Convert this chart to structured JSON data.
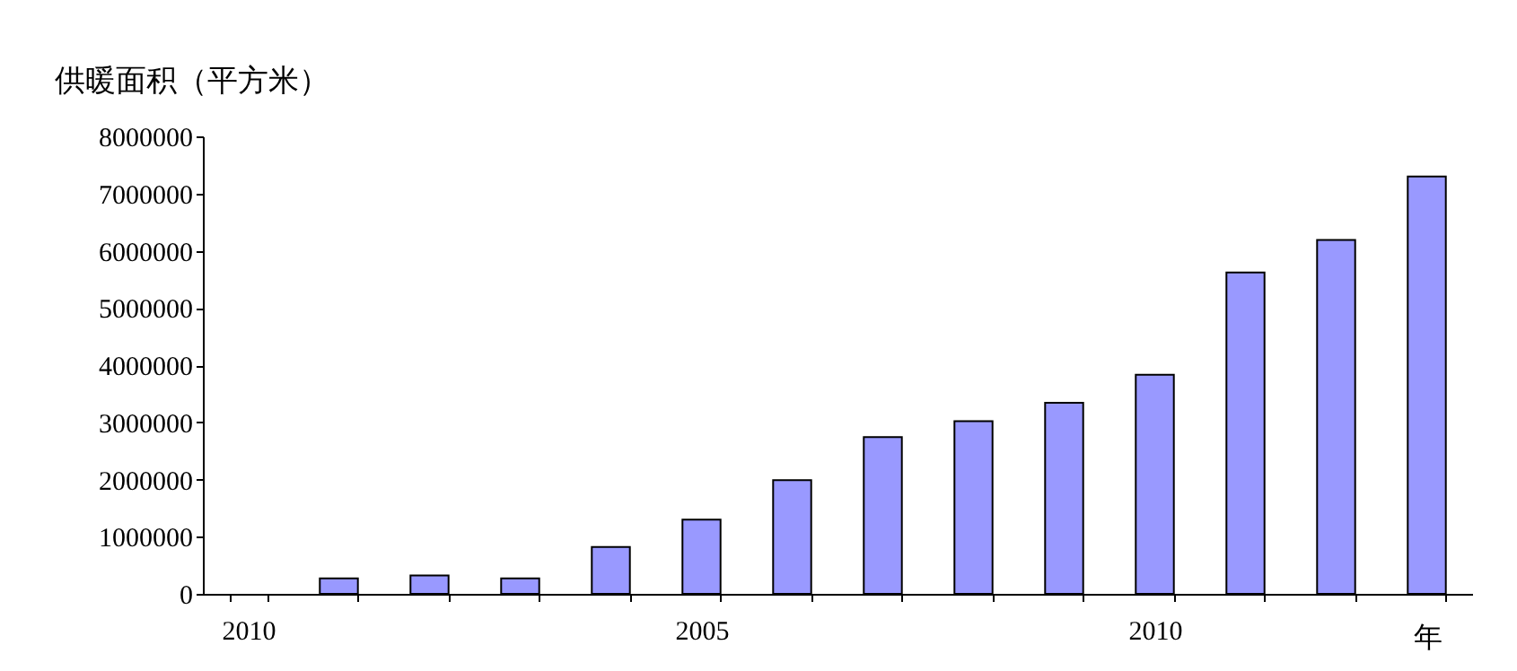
{
  "chart_data": {
    "type": "bar",
    "ylabel": "供暖面积（平方米）",
    "xlabel": "年",
    "categories": [
      "2010",
      null,
      null,
      null,
      null,
      "2005",
      null,
      null,
      null,
      null,
      "2010",
      null,
      null,
      null
    ],
    "values": [
      null,
      270000,
      320000,
      270000,
      820000,
      1300000,
      1990000,
      2740000,
      3020000,
      3340000,
      3830000,
      5620000,
      6190000,
      7300000
    ],
    "color": "#9999ff",
    "ylim": [
      0,
      8000000
    ],
    "yticks": [
      0,
      1000000,
      2000000,
      3000000,
      4000000,
      5000000,
      6000000,
      7000000,
      8000000
    ],
    "grid": false
  }
}
